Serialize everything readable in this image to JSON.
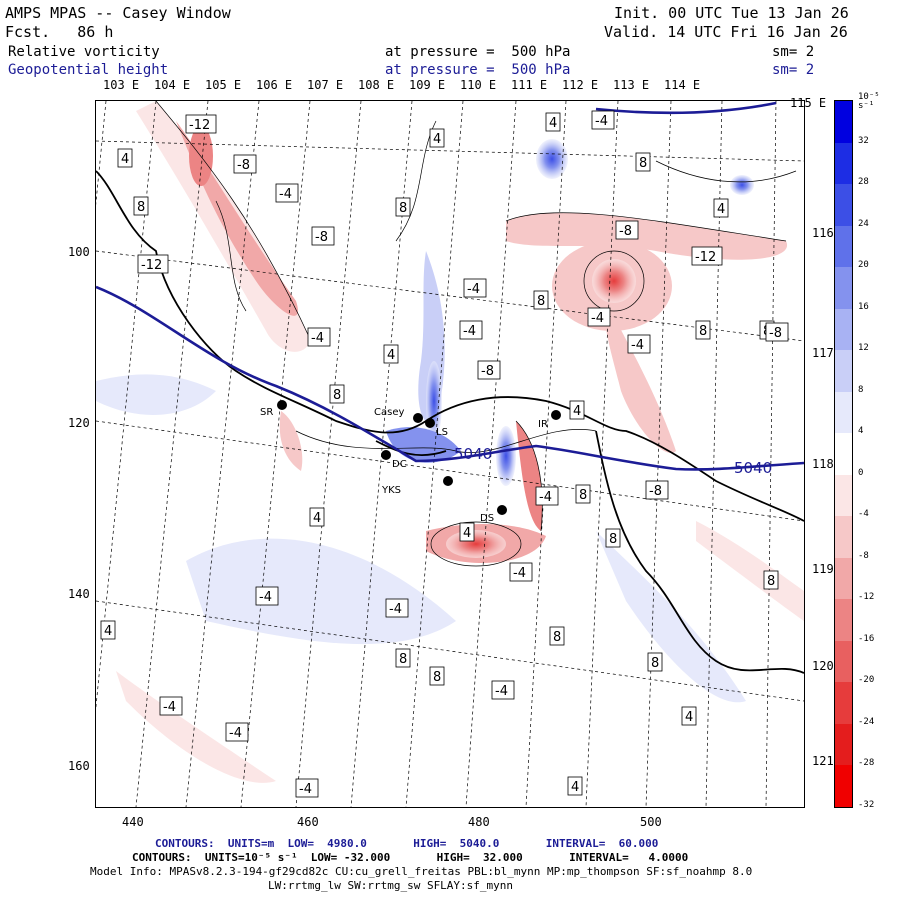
{
  "header": {
    "model_title": "AMPS MPAS -- Casey Window",
    "forecast": "Fcst.   86 h",
    "init": "Init. 00 UTC Tue 13 Jan 26",
    "valid": "Valid. 14 UTC Fri 16 Jan 26"
  },
  "fields": [
    {
      "name": "Relative vorticity",
      "level": "at pressure =  500 hPa",
      "smooth": "sm= 2"
    },
    {
      "name": "Geopotential height",
      "level": "at pressure =  500 hPa",
      "smooth": "sm= 2"
    }
  ],
  "longitudes_top": [
    "103 E",
    "104 E",
    "105 E",
    "106 E",
    "107 E",
    "108 E",
    "109 E",
    "110 E",
    "111 E",
    "112 E",
    "113 E",
    "114 E",
    "115 E"
  ],
  "longitudes_right": [
    "116 E",
    "117 E",
    "118 E",
    "119 E",
    "120 E",
    "121 E"
  ],
  "x_ticks": [
    "440",
    "460",
    "480",
    "500"
  ],
  "y_ticks": [
    "100",
    "120",
    "140",
    "160"
  ],
  "colorbar": {
    "unit": "10⁻⁵ s⁻¹",
    "labels": [
      "32",
      "28",
      "24",
      "20",
      "16",
      "12",
      "8",
      "4",
      "0",
      "-4",
      "-8",
      "-12",
      "-16",
      "-20",
      "-24",
      "-28",
      "-32"
    ],
    "colors": [
      "#0000e0",
      "#1d2de4",
      "#3c4fe6",
      "#5f71ea",
      "#8492ee",
      "#a8b2f3",
      "#c9cff7",
      "#e6e9fb",
      "#ffffff",
      "#fbe6e6",
      "#f6c8c8",
      "#f1a8a8",
      "#ec8484",
      "#e86060",
      "#e63c3c",
      "#e41d1d",
      "#f00000"
    ]
  },
  "stations": [
    "SR",
    "Casey",
    "LS",
    "DC",
    "YKS",
    "IR",
    "DS"
  ],
  "contour_labels": [
    "-12",
    "-8",
    "-4",
    "4",
    "8",
    "-12",
    "-8",
    "-4",
    "4",
    "8",
    "4",
    "-4",
    "8",
    "-8",
    "-4",
    "4",
    "8",
    "-4",
    "8",
    "-8",
    "-4",
    "4",
    "8",
    "-4",
    "8",
    "-12",
    "-8",
    "-4",
    "4",
    "8",
    "-4",
    "4",
    "8",
    "-4",
    "8",
    "-4",
    "4",
    "8",
    "-8",
    "-4",
    "4",
    "8",
    "-4",
    "4",
    "8",
    "-4",
    "8",
    "-4",
    "4"
  ],
  "height_label": "5040",
  "footer": {
    "height_contours": "CONTOURS:  UNITS=m  LOW=  4980.0       HIGH=  5040.0       INTERVAL=  60.000",
    "vort_contours": "CONTOURS:  UNITS=10⁻⁵ s⁻¹  LOW= -32.000       HIGH=  32.000       INTERVAL=   4.0000",
    "model_info": "Model Info: MPASv8.2.3-194-gf29cd82c CU:cu_grell_freitas PBL:bl_mynn MP:mp_thompson SF:sf_noahmp 8.0",
    "model_info2": "LW:rrtmg_lw SW:rrtmg_sw SFLAY:sf_mynn"
  }
}
